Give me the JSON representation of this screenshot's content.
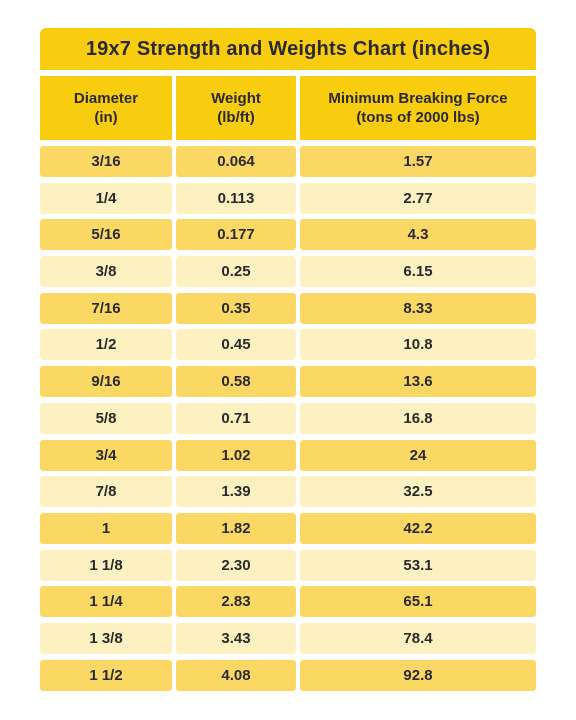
{
  "title": "19x7 Strength and Weights Chart (inches)",
  "headers": {
    "diameter": [
      "Diameter",
      "(in)"
    ],
    "weight": [
      "Weight",
      "(lb/ft)"
    ],
    "force": [
      "Minimum Breaking Force",
      "(tons of 2000 lbs)"
    ]
  },
  "rows": [
    {
      "diameter": "3/16",
      "weight": "0.064",
      "force": "1.57"
    },
    {
      "diameter": "1/4",
      "weight": "0.113",
      "force": "2.77"
    },
    {
      "diameter": "5/16",
      "weight": "0.177",
      "force": "4.3"
    },
    {
      "diameter": "3/8",
      "weight": "0.25",
      "force": "6.15"
    },
    {
      "diameter": "7/16",
      "weight": "0.35",
      "force": "8.33"
    },
    {
      "diameter": "1/2",
      "weight": "0.45",
      "force": "10.8"
    },
    {
      "diameter": "9/16",
      "weight": "0.58",
      "force": "13.6"
    },
    {
      "diameter": "5/8",
      "weight": "0.71",
      "force": "16.8"
    },
    {
      "diameter": "3/4",
      "weight": "1.02",
      "force": "24"
    },
    {
      "diameter": "7/8",
      "weight": "1.39",
      "force": "32.5"
    },
    {
      "diameter": "1",
      "weight": "1.82",
      "force": "42.2"
    },
    {
      "diameter": "1 1/8",
      "weight": "2.30",
      "force": "53.1"
    },
    {
      "diameter": "1 1/4",
      "weight": "2.83",
      "force": "65.1"
    },
    {
      "diameter": "1 3/8",
      "weight": "3.43",
      "force": "78.4"
    },
    {
      "diameter": "1 1/2",
      "weight": "4.08",
      "force": "92.8"
    }
  ],
  "colors": {
    "header": "#f9cd0f",
    "row_dark": "#fbd863",
    "row_light": "#fdf1c2",
    "text": "#2a2a2a"
  }
}
